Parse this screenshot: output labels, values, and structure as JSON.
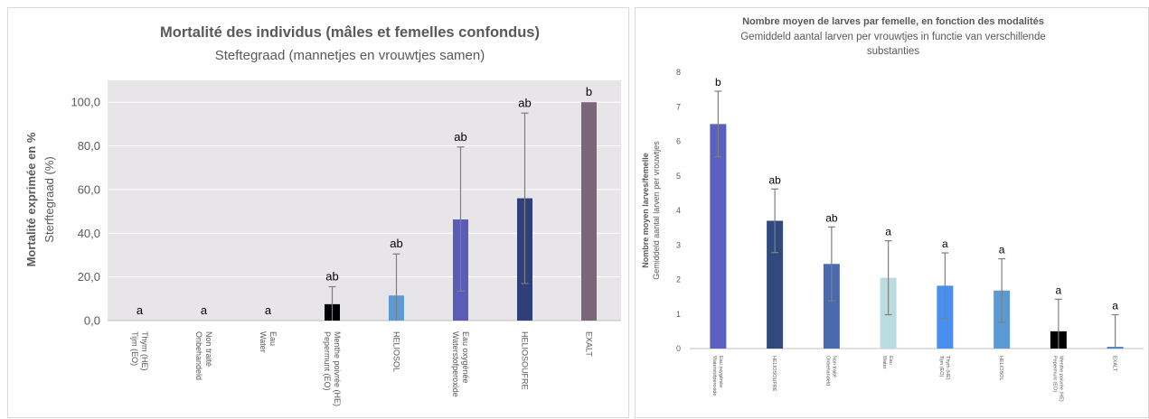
{
  "chart_data": [
    {
      "type": "bar",
      "title": "Mortalité des individus (mâles et femelles confondus)",
      "subtitle": "Steftegraad (mannetjes en vrouwtjes samen)",
      "ylabel": "Mortalité exprimée en %",
      "ylabel_sub": "Sterftegraad (%)",
      "xlabel": "",
      "ylim": [
        0,
        110
      ],
      "yticks": [
        "0,0",
        "20,0",
        "40,0",
        "60,0",
        "80,0",
        "100,0"
      ],
      "ytick_values": [
        0,
        20,
        40,
        60,
        80,
        100
      ],
      "grid": true,
      "background": "#e8e5e8",
      "categories": [
        [
          "Thym (HE)",
          "Tijm (EO)"
        ],
        [
          "Non traité",
          "Onbehandeld"
        ],
        [
          "Eau",
          "Water"
        ],
        [
          "Menthe poivrée (HE)",
          "Pepermunt (EO)"
        ],
        [
          "HELIOSOL"
        ],
        [
          "Eau oxygénée",
          "Waterstofperoxide"
        ],
        [
          "HELIOSOUFRE"
        ],
        [
          "EXALT"
        ]
      ],
      "values": [
        0,
        0,
        0,
        7.5,
        11.5,
        46.3,
        56,
        100
      ],
      "error_upper": [
        0,
        0,
        0,
        15.5,
        30.5,
        79.5,
        95,
        100
      ],
      "error_lower": [
        0,
        0,
        0,
        0,
        0,
        13.5,
        17,
        100
      ],
      "letters": [
        "a",
        "a",
        "a",
        "ab",
        "ab",
        "ab",
        "ab",
        "b"
      ],
      "colors": [
        "#7f7f7f",
        "#7f7f7f",
        "#7f7f7f",
        "#000000",
        "#5b9bd5",
        "#5b5bb8",
        "#2e3f7a",
        "#7a6678"
      ]
    },
    {
      "type": "bar",
      "title": "Nombre moyen de larves par femelle, en fonction des modalités",
      "subtitle": "Gemiddeld aantal larven per vrouwtjes in functie van verschillende substanties",
      "ylabel": "Nombre moyen larves/femelle",
      "ylabel_sub": "Gemiddeld aantal larven per vrouwtjes",
      "xlabel": "",
      "ylim": [
        0,
        8
      ],
      "yticks": [
        "0",
        "1",
        "2",
        "3",
        "4",
        "5",
        "6",
        "7",
        "8"
      ],
      "ytick_values": [
        0,
        1,
        2,
        3,
        4,
        5,
        6,
        7,
        8
      ],
      "grid": false,
      "background": "#ffffff",
      "categories": [
        [
          "Eau oxygénée",
          "Waterstofperoxide"
        ],
        [
          "HELIOSOUFRE"
        ],
        [
          "Non traité",
          "Onbehandeld"
        ],
        [
          "Eau",
          "Water"
        ],
        [
          "Thym (HE)",
          "Tijm (EO)"
        ],
        [
          "HELIOSOL"
        ],
        [
          "Menthe poivrée (HE)",
          "Pepermunt (EO)"
        ],
        [
          "EXALT"
        ]
      ],
      "values": [
        6.5,
        3.7,
        2.45,
        2.05,
        1.82,
        1.68,
        0.5,
        0.05
      ],
      "error_upper": [
        7.45,
        4.62,
        3.52,
        3.12,
        2.77,
        2.6,
        1.43,
        0.98
      ],
      "error_lower": [
        5.55,
        2.78,
        1.38,
        0.98,
        0.87,
        0.76,
        0,
        0
      ],
      "letters": [
        "b",
        "ab",
        "ab",
        "a",
        "a",
        "a",
        "a",
        "a"
      ],
      "colors": [
        "#5b5fbf",
        "#2e4a7f",
        "#4a6ab0",
        "#b8dce0",
        "#4a8ef0",
        "#5a9bd5",
        "#000000",
        "#4a7fd0"
      ]
    }
  ]
}
